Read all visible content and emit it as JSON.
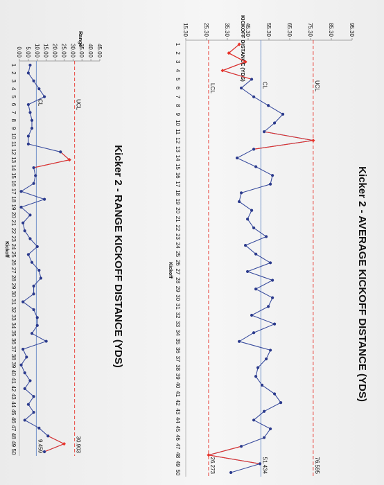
{
  "chart_data": [
    {
      "type": "line",
      "title": "Kicker 2 - AVERAGE KICKOFF DISTANCE (YDS)",
      "xlabel": "Kickoff",
      "ylabel": "KICKOFF DISTANCE (YDS)",
      "ylim": [
        15.3,
        95.3
      ],
      "yticks": [
        "95.30",
        "85.30",
        "75.30",
        "65.30",
        "55.30",
        "45.30",
        "35.30",
        "25.30",
        "15.30"
      ],
      "x": [
        1,
        2,
        3,
        4,
        5,
        6,
        7,
        8,
        9,
        10,
        11,
        12,
        13,
        14,
        15,
        16,
        17,
        18,
        19,
        20,
        21,
        22,
        23,
        24,
        25,
        26,
        27,
        28,
        29,
        30,
        31,
        32,
        33,
        34,
        35,
        36,
        37,
        38,
        39,
        40,
        41,
        42,
        43,
        44,
        45,
        46,
        47,
        48,
        49,
        50
      ],
      "series": [
        {
          "values": [
            41,
            36,
            44,
            33,
            47,
            42,
            48,
            55,
            62,
            58,
            53,
            76.6,
            48,
            40,
            49,
            57,
            56,
            42,
            41,
            47,
            45,
            48,
            54,
            44,
            49,
            56,
            45,
            57,
            49,
            57,
            55,
            47,
            58,
            48,
            41,
            56,
            54,
            50,
            49,
            52,
            58,
            61,
            53,
            48,
            56,
            53,
            42,
            26.3,
            51,
            37
          ],
          "color": "#3a4d9e",
          "out_color": "#e8332a",
          "out_points": [
            1,
            2,
            3,
            4,
            12,
            48
          ]
        }
      ],
      "limits": {
        "UCL": 76.595,
        "CL": 51.434,
        "LCL": 26.273
      },
      "limit_labels": {
        "UCL": "UCL",
        "CL": "CL",
        "LCL": "LCL"
      },
      "annotations": [
        "76.595",
        "51.434",
        "26.273"
      ],
      "grid": false
    },
    {
      "type": "line",
      "title": "Kicker 2 - RANGE KICKOFF DISTANCE (YDS)",
      "xlabel": "Kickoff",
      "ylabel": "Range",
      "ylim": [
        0,
        45
      ],
      "yticks": [
        "45.00",
        "40.00",
        "35.00",
        "30.00",
        "25.00",
        "20.00",
        "15.00",
        "10.00",
        "5.00",
        "0.00"
      ],
      "x": [
        1,
        2,
        3,
        4,
        5,
        6,
        7,
        8,
        9,
        10,
        11,
        12,
        13,
        14,
        15,
        16,
        17,
        18,
        19,
        20,
        21,
        22,
        23,
        24,
        25,
        26,
        27,
        28,
        29,
        30,
        31,
        32,
        33,
        34,
        35,
        36,
        37,
        38,
        39,
        40,
        41,
        42,
        43,
        44,
        45,
        46,
        47,
        48,
        49,
        50
      ],
      "series": [
        {
          "values": [
            6,
            5,
            8,
            11,
            14,
            5,
            6,
            7,
            7,
            5,
            5,
            23,
            28,
            8,
            9,
            8,
            1,
            14,
            1,
            6,
            2,
            3,
            6,
            10,
            5,
            7,
            11,
            12,
            8,
            8,
            2,
            8,
            10,
            10,
            7,
            15,
            2,
            4,
            1,
            3,
            6,
            3,
            8,
            5,
            8,
            3,
            11,
            16,
            25,
            14
          ],
          "color": "#3a4d9e",
          "out_color": "#e8332a",
          "out_points": [
            13,
            49
          ]
        }
      ],
      "limits": {
        "UCL": 30.903,
        "CL": 9.459
      },
      "limit_labels": {
        "UCL": "UCL",
        "CL": "CL"
      },
      "annotations": [
        "30.903",
        "9.459"
      ],
      "grid": false
    }
  ]
}
